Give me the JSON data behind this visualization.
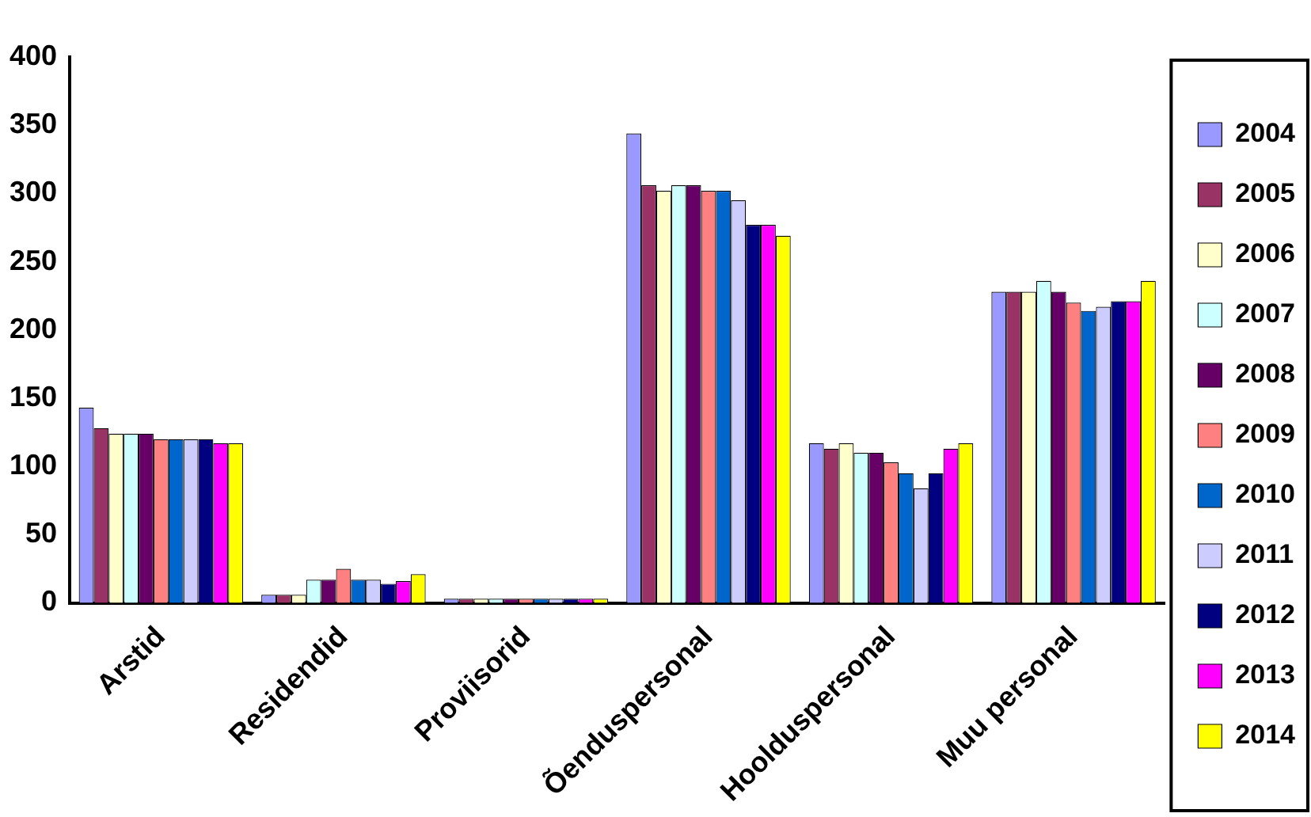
{
  "chart_data": {
    "type": "bar",
    "categories": [
      "Arstid",
      "Residendid",
      "Proviisorid",
      "Õenduspersonal",
      "Hoolduspersonal",
      "Muu personal"
    ],
    "series": [
      {
        "name": "2004",
        "color": "#9999ff",
        "values": [
          143,
          6,
          3,
          344,
          117,
          228
        ]
      },
      {
        "name": "2005",
        "color": "#993366",
        "values": [
          128,
          6,
          3,
          306,
          113,
          228
        ]
      },
      {
        "name": "2006",
        "color": "#ffffcc",
        "values": [
          124,
          6,
          3,
          302,
          117,
          228
        ]
      },
      {
        "name": "2007",
        "color": "#ccffff",
        "values": [
          124,
          17,
          3,
          306,
          110,
          236
        ]
      },
      {
        "name": "2008",
        "color": "#660066",
        "values": [
          124,
          17,
          3,
          306,
          110,
          228
        ]
      },
      {
        "name": "2009",
        "color": "#ff8080",
        "values": [
          120,
          25,
          3,
          302,
          103,
          220
        ]
      },
      {
        "name": "2010",
        "color": "#0066cc",
        "values": [
          120,
          17,
          3,
          302,
          95,
          214
        ]
      },
      {
        "name": "2011",
        "color": "#ccccff",
        "values": [
          120,
          17,
          3,
          295,
          84,
          217
        ]
      },
      {
        "name": "2012",
        "color": "#000080",
        "values": [
          120,
          14,
          3,
          277,
          95,
          221
        ]
      },
      {
        "name": "2013",
        "color": "#ff00ff",
        "values": [
          117,
          16,
          3,
          277,
          113,
          221
        ]
      },
      {
        "name": "2014",
        "color": "#ffff00",
        "values": [
          117,
          21,
          3,
          269,
          117,
          236
        ]
      }
    ],
    "ylim": [
      0,
      400
    ],
    "yticks": [
      0,
      50,
      100,
      150,
      200,
      250,
      300,
      350,
      400
    ],
    "legend": "right"
  }
}
